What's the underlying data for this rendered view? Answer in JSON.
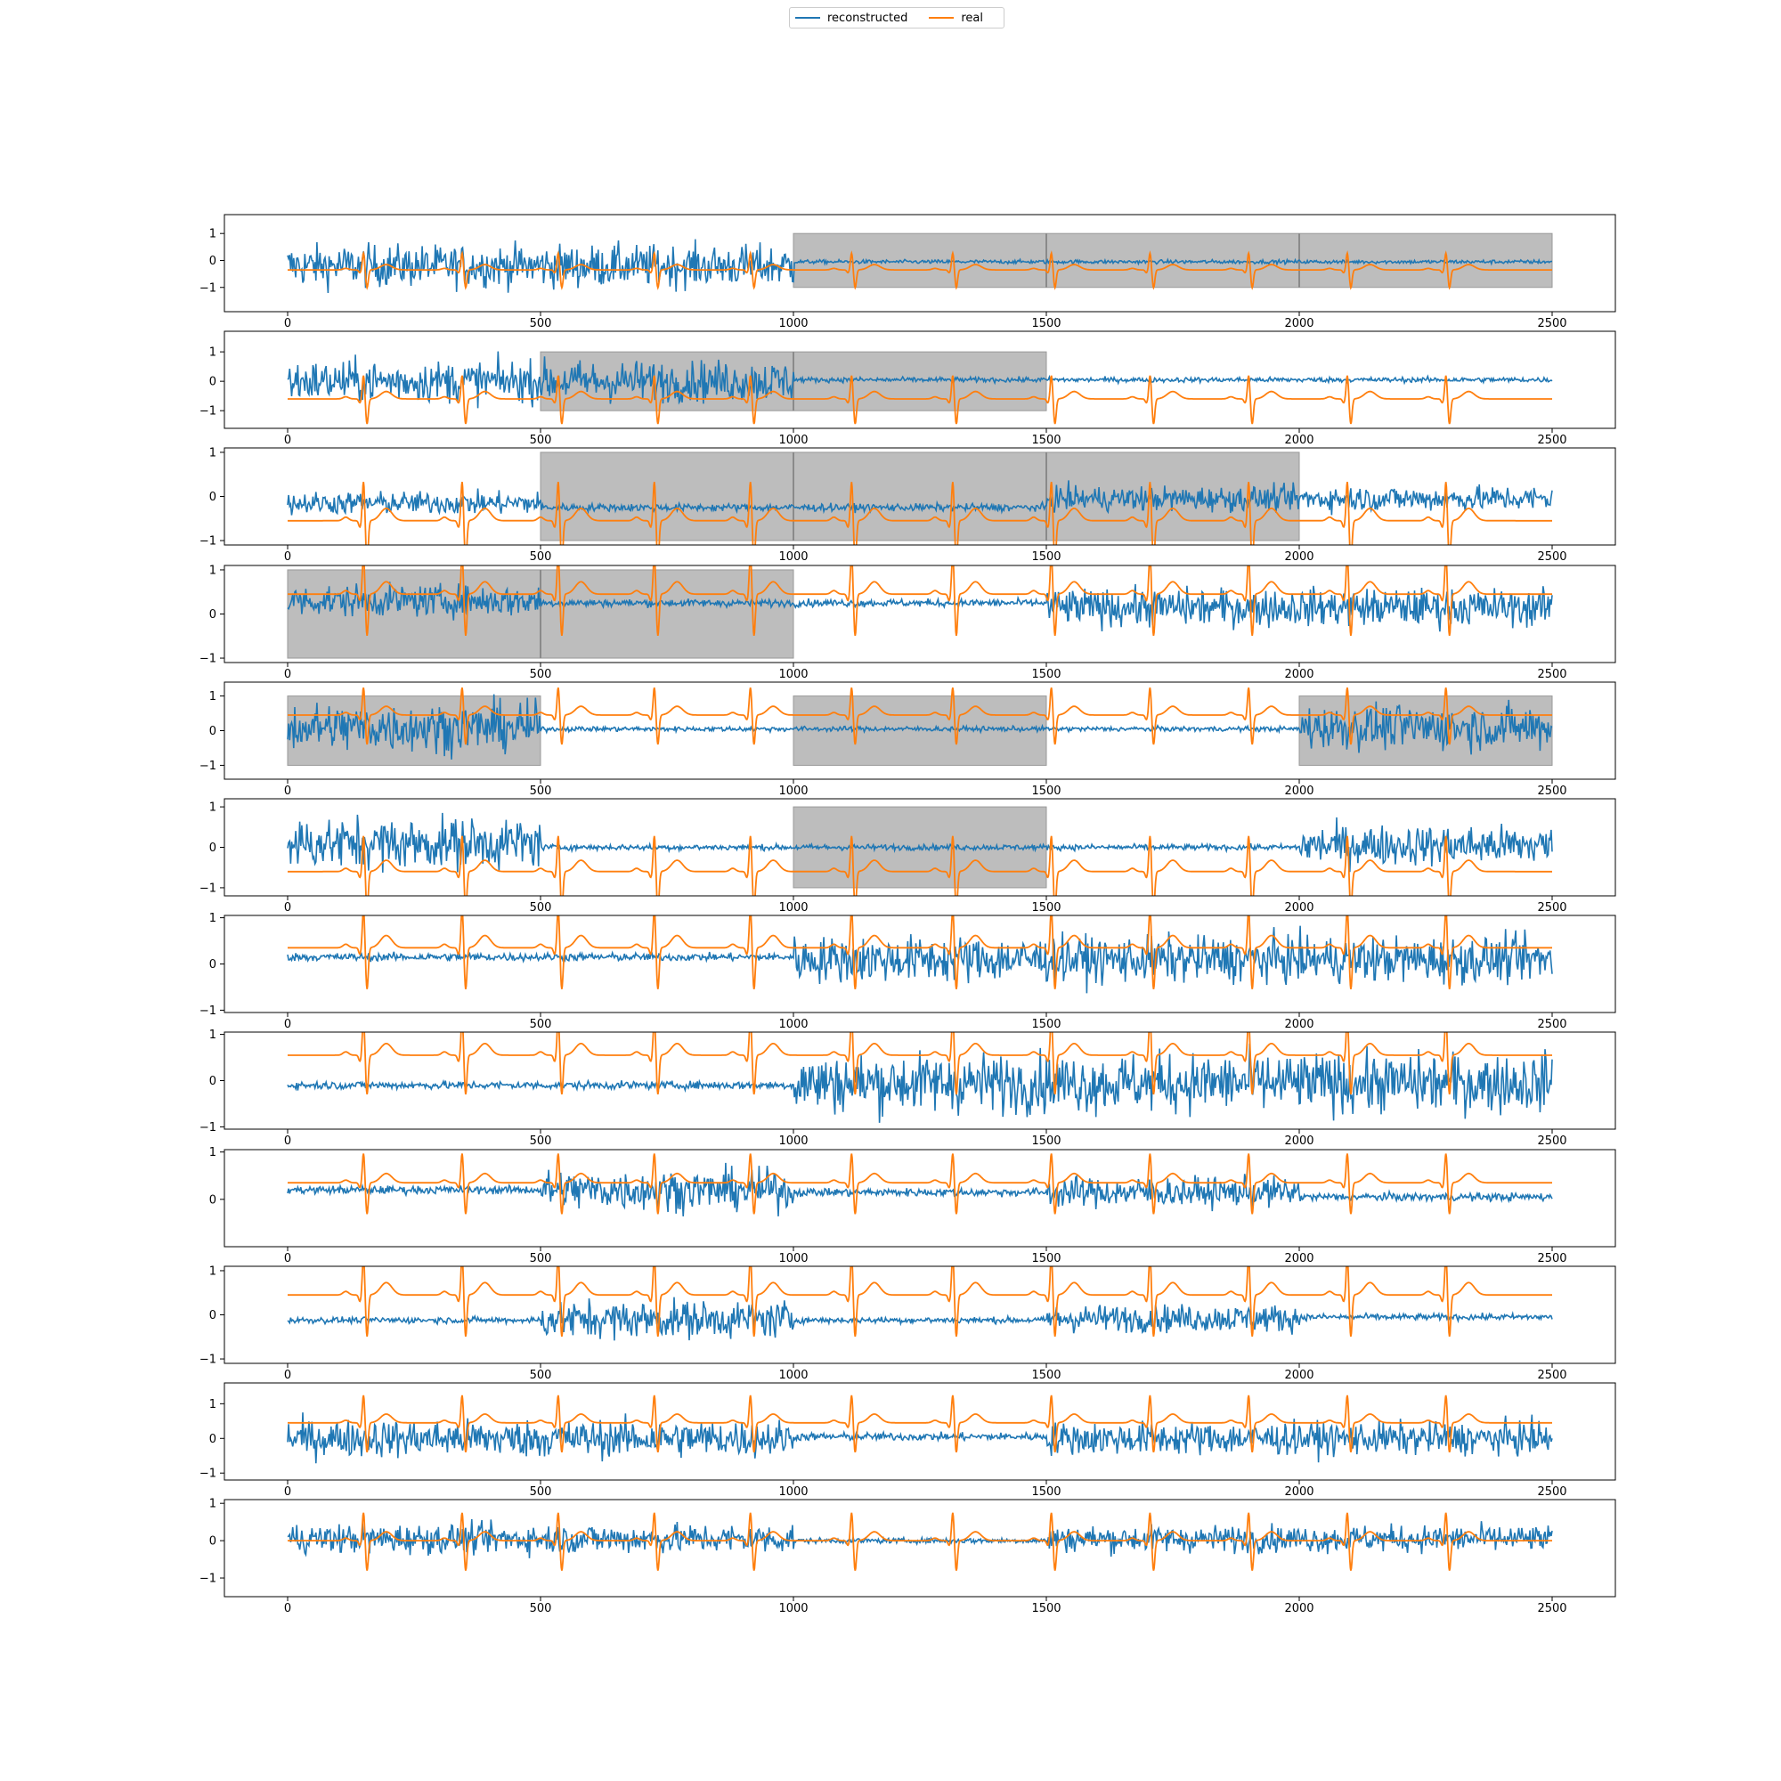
{
  "legend": {
    "reconstructed_label": "reconstructed",
    "real_label": "real"
  },
  "colors": {
    "reconstructed": "#1f77b4",
    "real": "#ff7f0e",
    "masked_region": "#bdbdbd"
  },
  "chart_data": {
    "type": "line",
    "subplot_count": 12,
    "x_range": [
      0,
      2500
    ],
    "x_ticks": [
      0,
      500,
      1000,
      1500,
      2000,
      2500
    ],
    "series": [
      {
        "name": "reconstructed",
        "color": "#1f77b4"
      },
      {
        "name": "real",
        "color": "#ff7f0e"
      }
    ],
    "r_peaks_x": [
      150,
      345,
      535,
      725,
      915,
      1115,
      1315,
      1510,
      1705,
      1900,
      2095,
      2290
    ],
    "panels": [
      {
        "y_ticks": [
          -1,
          0,
          1
        ],
        "ylim": [
          -1.9,
          1.7
        ],
        "masked_ranges": [
          [
            1000,
            2500
          ]
        ],
        "recon_segments": [
          [
            0,
            1000,
            0.55,
            -0.2
          ],
          [
            1000,
            2500,
            0.05,
            -0.05
          ]
        ],
        "real_baseline": -0.35,
        "real_amp": 0.7
      },
      {
        "y_ticks": [
          -1,
          0,
          1
        ],
        "ylim": [
          -1.6,
          1.7
        ],
        "masked_ranges": [
          [
            500,
            1500
          ]
        ],
        "recon_segments": [
          [
            0,
            1000,
            0.5,
            0.0
          ],
          [
            1000,
            2500,
            0.06,
            0.05
          ]
        ],
        "real_baseline": -0.6,
        "real_amp": 0.9
      },
      {
        "y_ticks": [
          -1,
          0,
          1
        ],
        "ylim": [
          -1.1,
          1.1
        ],
        "masked_ranges": [
          [
            500,
            2000
          ]
        ],
        "recon_segments": [
          [
            0,
            500,
            0.18,
            -0.15
          ],
          [
            500,
            1500,
            0.06,
            -0.25
          ],
          [
            1500,
            2500,
            0.2,
            -0.05
          ]
        ],
        "real_baseline": -0.55,
        "real_amp": 1.0
      },
      {
        "y_ticks": [
          -1,
          0,
          1
        ],
        "ylim": [
          -1.1,
          1.1
        ],
        "masked_ranges": [
          [
            0,
            1000
          ]
        ],
        "recon_segments": [
          [
            0,
            500,
            0.25,
            0.3
          ],
          [
            500,
            1500,
            0.06,
            0.25
          ],
          [
            1500,
            2500,
            0.3,
            0.15
          ]
        ],
        "real_baseline": 0.45,
        "real_amp": 1.0
      },
      {
        "y_ticks": [
          -1,
          0,
          1
        ],
        "ylim": [
          -1.4,
          1.4
        ],
        "masked_ranges": [
          [
            0,
            500
          ],
          [
            1000,
            1500
          ],
          [
            2000,
            2500
          ]
        ],
        "recon_segments": [
          [
            0,
            500,
            0.5,
            0.1
          ],
          [
            500,
            2000,
            0.05,
            0.05
          ],
          [
            2000,
            2500,
            0.45,
            0.1
          ]
        ],
        "real_baseline": 0.45,
        "real_amp": 0.9
      },
      {
        "y_ticks": [
          -1,
          0,
          1
        ],
        "ylim": [
          -1.2,
          1.2
        ],
        "masked_ranges": [
          [
            1000,
            1500
          ]
        ],
        "recon_segments": [
          [
            0,
            500,
            0.45,
            0.1
          ],
          [
            500,
            2000,
            0.05,
            0.0
          ],
          [
            2000,
            2500,
            0.35,
            0.05
          ]
        ],
        "real_baseline": -0.6,
        "real_amp": 1.0
      },
      {
        "y_ticks": [
          -1,
          0,
          1
        ],
        "ylim": [
          -1.05,
          1.05
        ],
        "masked_ranges": [],
        "recon_segments": [
          [
            0,
            1000,
            0.06,
            0.15
          ],
          [
            1000,
            2500,
            0.35,
            0.1
          ]
        ],
        "real_baseline": 0.35,
        "real_amp": 0.95
      },
      {
        "y_ticks": [
          -1,
          0,
          1
        ],
        "ylim": [
          -1.05,
          1.05
        ],
        "masked_ranges": [],
        "recon_segments": [
          [
            0,
            1000,
            0.06,
            -0.1
          ],
          [
            1000,
            2500,
            0.45,
            -0.05
          ]
        ],
        "real_baseline": 0.55,
        "real_amp": 0.9
      },
      {
        "y_ticks": [
          0,
          1
        ],
        "ylim": [
          -1.0,
          1.05
        ],
        "masked_ranges": [],
        "recon_segments": [
          [
            0,
            500,
            0.06,
            0.2
          ],
          [
            500,
            1000,
            0.3,
            0.2
          ],
          [
            1000,
            1500,
            0.06,
            0.15
          ],
          [
            1500,
            2000,
            0.22,
            0.15
          ],
          [
            2000,
            2500,
            0.06,
            0.05
          ]
        ],
        "real_baseline": 0.35,
        "real_amp": 0.7
      },
      {
        "y_ticks": [
          -1,
          0,
          1
        ],
        "ylim": [
          -1.1,
          1.1
        ],
        "masked_ranges": [],
        "recon_segments": [
          [
            0,
            500,
            0.05,
            -0.12
          ],
          [
            500,
            1000,
            0.3,
            -0.1
          ],
          [
            1000,
            1500,
            0.05,
            -0.12
          ],
          [
            1500,
            2000,
            0.22,
            -0.08
          ],
          [
            2000,
            2500,
            0.05,
            -0.05
          ]
        ],
        "real_baseline": 0.45,
        "real_amp": 1.0
      },
      {
        "y_ticks": [
          -1,
          0,
          1
        ],
        "ylim": [
          -1.2,
          1.6
        ],
        "masked_ranges": [],
        "recon_segments": [
          [
            0,
            1000,
            0.38,
            0.0
          ],
          [
            1000,
            1500,
            0.08,
            0.05
          ],
          [
            1500,
            2500,
            0.33,
            0.0
          ]
        ],
        "real_baseline": 0.45,
        "real_amp": 0.9
      },
      {
        "y_ticks": [
          -1,
          0,
          1
        ],
        "ylim": [
          -1.5,
          1.1
        ],
        "masked_ranges": [],
        "recon_segments": [
          [
            0,
            1000,
            0.28,
            0.05
          ],
          [
            1000,
            1500,
            0.05,
            0.0
          ],
          [
            1500,
            2500,
            0.25,
            0.05
          ]
        ],
        "real_baseline": 0.0,
        "real_amp": 0.85
      }
    ]
  }
}
